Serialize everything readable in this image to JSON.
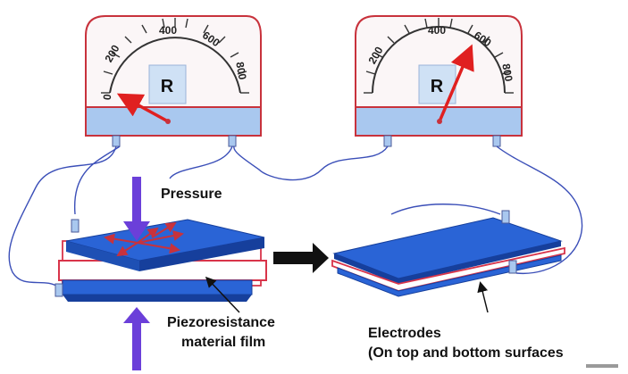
{
  "labels": {
    "pressure": "Pressure",
    "film_line1": "Piezoresistance",
    "film_line2": "material film",
    "electrodes_line1": "Electrodes",
    "electrodes_line2": "(On top and bottom surfaces"
  },
  "meters": {
    "left": {
      "display": "R",
      "ticks": [
        "0",
        "200",
        "400",
        "600",
        "800"
      ]
    },
    "right": {
      "display": "R",
      "ticks": [
        "200",
        "400",
        "600",
        "800"
      ]
    }
  },
  "colors": {
    "meter_frame": "#c8323c",
    "meter_face": "#fbf6f7",
    "meter_band": "#a9c8ef",
    "display": "#cfe1f5",
    "needle": "#e02020",
    "electrode": "#2a64d6",
    "electrode_dark": "#163f9c",
    "film_outline": "#d8344a",
    "pressure_arrow": "#6b3fd9",
    "wire": "#3b4fb8",
    "black_arrow": "#000000"
  },
  "icons": [
    "resistance-meter-icon",
    "pressure-arrow-icon",
    "process-arrow-icon"
  ]
}
